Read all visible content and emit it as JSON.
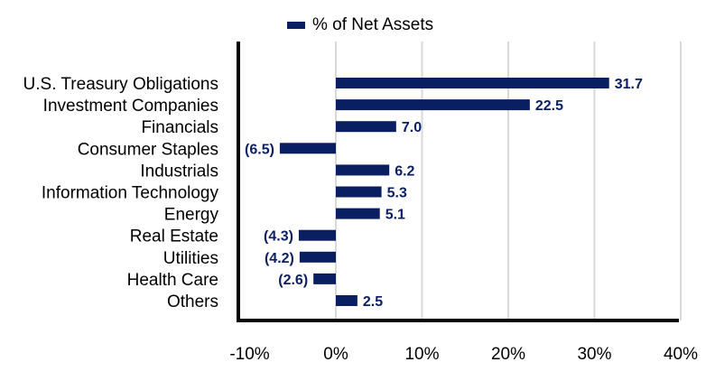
{
  "chart_data": {
    "type": "bar",
    "orientation": "horizontal",
    "legend": {
      "label": "% of Net Assets",
      "placement": "top-center"
    },
    "categories": [
      "U.S. Treasury Obligations",
      "Investment Companies",
      "Financials",
      "Consumer Staples",
      "Industrials",
      "Information Technology",
      "Energy",
      "Real Estate",
      "Utilities",
      "Health Care",
      "Others"
    ],
    "values": [
      31.7,
      22.5,
      7.0,
      -6.5,
      6.2,
      5.3,
      5.1,
      -4.3,
      -4.2,
      -2.6,
      2.5
    ],
    "data_labels": [
      "31.7",
      "22.5",
      "7.0",
      "(6.5)",
      "6.2",
      "5.3",
      "5.1",
      "(4.3)",
      "(4.2)",
      "(2.6)",
      "2.5"
    ],
    "xlim": [
      -10,
      40
    ],
    "x_ticks": [
      -10,
      0,
      10,
      20,
      30,
      40
    ],
    "x_tick_labels": [
      "-10%",
      "0%",
      "10%",
      "20%",
      "30%",
      "40%"
    ],
    "grid": "vertical",
    "colors": {
      "bar": "#0a1f62",
      "grid": "#d9d9d9",
      "axis": "#000000",
      "data_label": "#0a1f62"
    }
  }
}
